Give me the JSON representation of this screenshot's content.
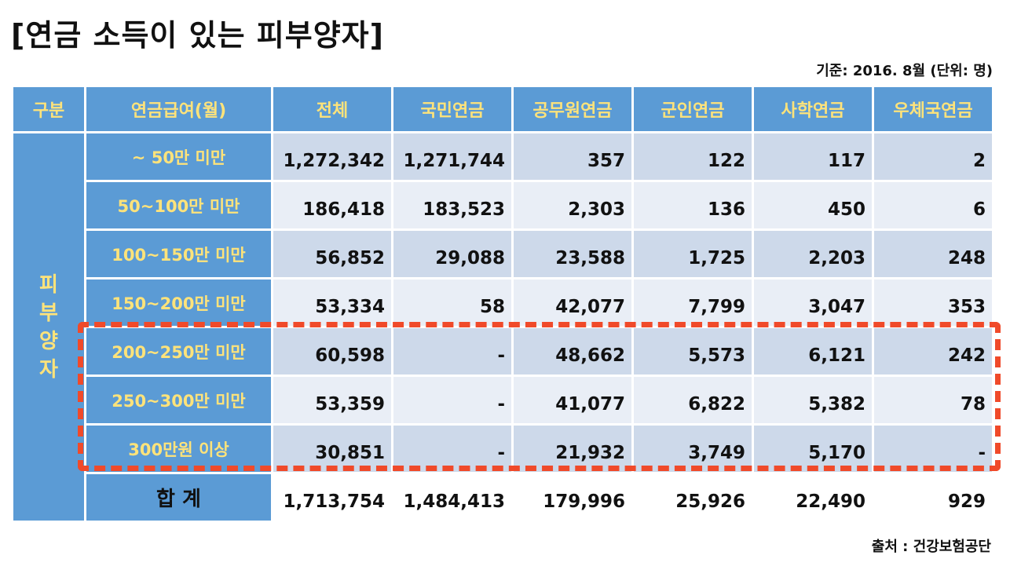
{
  "title": "[연금 소득이 있는 피부양자]",
  "basis": "기준: 2016. 8월 (단위: 명)",
  "source": "출처 : 건강보험공단",
  "header": {
    "category": "구분",
    "pension_amount": "연금급여(월)",
    "total": "전체",
    "national": "국민연금",
    "civil_servant": "공무원연금",
    "military": "군인연금",
    "private_school": "사학연금",
    "postal": "우체국연금"
  },
  "group_label": [
    "피",
    "부",
    "양",
    "자"
  ],
  "rows": [
    {
      "label": "~ 50만 미만",
      "values": [
        "1,272,342",
        "1,271,744",
        "357",
        "122",
        "117",
        "2"
      ]
    },
    {
      "label": "50~100만 미만",
      "values": [
        "186,418",
        "183,523",
        "2,303",
        "136",
        "450",
        "6"
      ]
    },
    {
      "label": "100~150만 미만",
      "values": [
        "56,852",
        "29,088",
        "23,588",
        "1,725",
        "2,203",
        "248"
      ]
    },
    {
      "label": "150~200만 미만",
      "values": [
        "53,334",
        "58",
        "42,077",
        "7,799",
        "3,047",
        "353"
      ]
    },
    {
      "label": "200~250만 미만",
      "values": [
        "60,598",
        "-",
        "48,662",
        "5,573",
        "6,121",
        "242"
      ]
    },
    {
      "label": "250~300만 미만",
      "values": [
        "53,359",
        "-",
        "41,077",
        "6,822",
        "5,382",
        "78"
      ]
    },
    {
      "label": "300만원 이상",
      "values": [
        "30,851",
        "-",
        "21,932",
        "3,749",
        "5,170",
        "-"
      ]
    }
  ],
  "sum": {
    "label": "합 계",
    "values": [
      "1,713,754",
      "1,484,413",
      "179,996",
      "25,926",
      "22,490",
      "929"
    ]
  },
  "colors": {
    "header_bg": "#5b9bd5",
    "header_text": "#ffe37a",
    "highlight": "#f04a2a"
  }
}
